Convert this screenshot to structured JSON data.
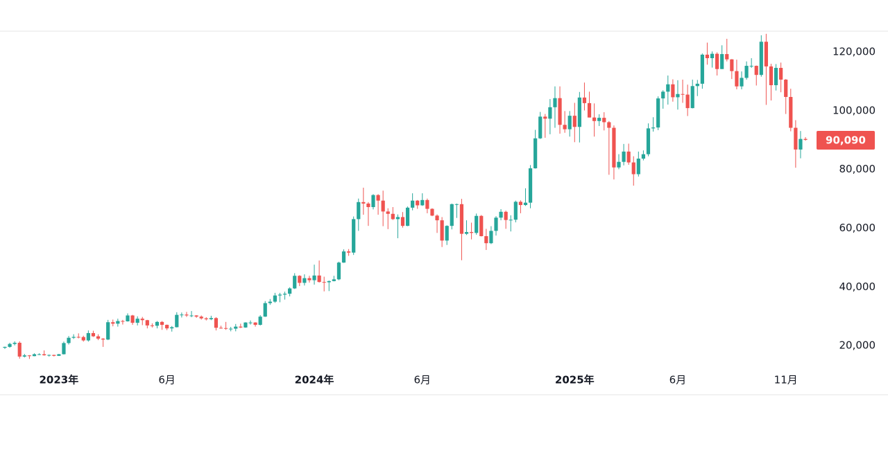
{
  "chart_data": {
    "type": "candlestick",
    "categories": [
      null,
      null,
      null,
      null,
      null,
      null,
      null,
      null,
      null,
      null,
      null,
      "2023年",
      null,
      null,
      null,
      null,
      null,
      null,
      null,
      null,
      null,
      null,
      null,
      null,
      null,
      null,
      null,
      null,
      null,
      null,
      null,
      null,
      null,
      "6月",
      null,
      null,
      null,
      null,
      null,
      null,
      null,
      null,
      null,
      null,
      null,
      null,
      null,
      null,
      null,
      null,
      null,
      null,
      null,
      null,
      null,
      null,
      null,
      null,
      null,
      null,
      null,
      null,
      null,
      "2024年",
      null,
      null,
      null,
      null,
      null,
      null,
      null,
      null,
      null,
      null,
      null,
      null,
      null,
      null,
      null,
      null,
      null,
      null,
      null,
      null,
      null,
      "6月",
      null,
      null,
      null,
      null,
      null,
      null,
      null,
      null,
      null,
      null,
      null,
      null,
      null,
      null,
      null,
      null,
      null,
      null,
      null,
      null,
      null,
      null,
      null,
      null,
      null,
      null,
      null,
      null,
      null,
      null,
      "2025年",
      null,
      null,
      null,
      null,
      null,
      null,
      null,
      null,
      null,
      null,
      null,
      null,
      null,
      null,
      null,
      null,
      null,
      null,
      null,
      null,
      "6月",
      null,
      null,
      null,
      null,
      null,
      null,
      null,
      null,
      null,
      null,
      null,
      null,
      null,
      null,
      null,
      null,
      null,
      null,
      null,
      null,
      null,
      "11月",
      null,
      null,
      null,
      null
    ],
    "open": [
      19300,
      19600,
      20600,
      21000,
      16300,
      16700,
      16450,
      17100,
      17100,
      16750,
      16850,
      16550,
      17100,
      20900,
      22700,
      23000,
      22950,
      21800,
      24300,
      23200,
      22400,
      22100,
      28000,
      27500,
      28400,
      28300,
      30300,
      27800,
      29200,
      28700,
      26900,
      26800,
      28100,
      27100,
      25900,
      26300,
      30500,
      30600,
      30300,
      30300,
      29900,
      29300,
      29000,
      29400,
      26100,
      26000,
      25800,
      25800,
      26500,
      26200,
      27900,
      27900,
      27100,
      29900,
      34500,
      35000,
      37100,
      37400,
      37700,
      39500,
      43800,
      41400,
      43000,
      42300,
      43900,
      41700,
      41600,
      42000,
      42600,
      48300,
      52100,
      51700,
      63100,
      68900,
      68400,
      67200,
      71300,
      69400,
      65700,
      64900,
      63100,
      63800,
      60800,
      67000,
      69400,
      67800,
      69600,
      66600,
      64300,
      62700,
      55800,
      60800,
      68200,
      68200,
      58100,
      58700,
      58400,
      64200,
      57300,
      54900,
      59100,
      63600,
      65600,
      62800,
      62900,
      69000,
      67900,
      68700,
      80400,
      90600,
      98000,
      97300,
      101200,
      104300,
      95200,
      93700,
      98300,
      94500,
      104500,
      102600,
      97700,
      96500,
      97600,
      96100,
      94200,
      80700,
      82600,
      86100,
      82400,
      78400,
      83700,
      85200,
      94000,
      94300,
      104200,
      106500,
      109000,
      104600,
      105700,
      105500,
      100900,
      108400,
      109200,
      119100,
      117900,
      119400,
      114200,
      119300,
      117500,
      113500,
      108300,
      111200,
      115300,
      115300,
      112200,
      123500,
      115100,
      108700,
      114600,
      110600,
      104700,
      94200,
      86800,
      90400
    ],
    "high": [
      19700,
      21000,
      21500,
      21500,
      17200,
      16800,
      17400,
      17400,
      18400,
      17000,
      16950,
      17200,
      21400,
      23300,
      23900,
      24200,
      23400,
      25200,
      25100,
      23900,
      22600,
      28800,
      28900,
      29200,
      28800,
      31000,
      30500,
      30000,
      29800,
      28800,
      27600,
      28400,
      28400,
      27200,
      26700,
      31400,
      31300,
      31500,
      31800,
      30400,
      30300,
      29700,
      30200,
      29700,
      26800,
      28100,
      26400,
      27400,
      27500,
      28000,
      28600,
      28000,
      30400,
      35200,
      35900,
      38000,
      38000,
      38400,
      39900,
      44700,
      44000,
      44300,
      43800,
      47600,
      49000,
      43500,
      42200,
      43800,
      48600,
      52800,
      52900,
      64000,
      70100,
      73800,
      68900,
      71600,
      71600,
      72800,
      66800,
      67200,
      64700,
      65500,
      67400,
      71900,
      69600,
      71900,
      70100,
      66800,
      64700,
      63800,
      61000,
      68400,
      68400,
      70000,
      62700,
      61900,
      65000,
      64500,
      59800,
      60700,
      64100,
      66500,
      66000,
      64400,
      69400,
      69500,
      73600,
      81500,
      93500,
      99600,
      98900,
      104000,
      108300,
      108300,
      99900,
      99900,
      102700,
      106400,
      109600,
      106500,
      102500,
      98800,
      99500,
      96500,
      95000,
      85200,
      88700,
      88800,
      84500,
      86100,
      86500,
      95700,
      97800,
      104900,
      107000,
      112000,
      110700,
      110400,
      110600,
      108900,
      110600,
      110500,
      119500,
      123200,
      120200,
      119900,
      122300,
      124500,
      117600,
      117400,
      113400,
      116800,
      117900,
      115400,
      125700,
      126200,
      116000,
      115900,
      116400,
      110800,
      107500,
      96800,
      93100,
      91000
    ],
    "low": [
      18900,
      19300,
      20100,
      15600,
      16000,
      15500,
      16400,
      16800,
      16600,
      16300,
      16350,
      16500,
      17000,
      20400,
      22300,
      22500,
      21400,
      21400,
      23000,
      21900,
      19600,
      21900,
      26600,
      26500,
      27200,
      28200,
      27100,
      26900,
      27000,
      25900,
      26200,
      25900,
      25400,
      25300,
      24800,
      26200,
      29600,
      29800,
      29700,
      29500,
      28900,
      28600,
      28700,
      25200,
      25800,
      25400,
      24900,
      24900,
      26000,
      26100,
      27200,
      26500,
      26900,
      29800,
      33900,
      34600,
      34800,
      35700,
      36800,
      39300,
      40300,
      40500,
      41500,
      40800,
      41500,
      38500,
      38600,
      41900,
      42300,
      48200,
      50600,
      50900,
      59100,
      64600,
      60800,
      66400,
      64600,
      60700,
      59700,
      62800,
      56600,
      60200,
      60700,
      66100,
      66600,
      67600,
      65100,
      64100,
      58400,
      53600,
      54300,
      59600,
      63500,
      49100,
      57700,
      56200,
      57800,
      57200,
      52600,
      54600,
      57500,
      62700,
      59800,
      58900,
      62000,
      65100,
      67600,
      66800,
      80300,
      90400,
      90800,
      92000,
      94200,
      92200,
      92500,
      91200,
      89300,
      89200,
      100100,
      97700,
      91200,
      94800,
      93300,
      78200,
      76600,
      80100,
      81400,
      81600,
      74500,
      77600,
      83100,
      84500,
      92900,
      93400,
      100700,
      102100,
      103100,
      100400,
      102700,
      98200,
      100800,
      105000,
      107500,
      115700,
      114700,
      112000,
      114200,
      116800,
      110800,
      107300,
      107300,
      110600,
      114600,
      108600,
      111600,
      102000,
      103500,
      106900,
      106300,
      98900,
      93000,
      80600,
      83800,
      89800
    ],
    "close": [
      19600,
      20600,
      21000,
      16300,
      16700,
      16450,
      17100,
      17100,
      16750,
      16850,
      16550,
      17100,
      20900,
      22700,
      23000,
      22950,
      21800,
      24300,
      23200,
      22400,
      22100,
      28000,
      27500,
      28400,
      28300,
      30300,
      27800,
      29200,
      28700,
      26900,
      26800,
      28100,
      27100,
      25900,
      26300,
      30500,
      30600,
      30300,
      30300,
      29900,
      29300,
      29000,
      29400,
      26100,
      26000,
      25800,
      25800,
      26500,
      26200,
      27900,
      27900,
      27100,
      29900,
      34500,
      35000,
      37100,
      37400,
      37700,
      39500,
      43800,
      41400,
      43000,
      42300,
      43900,
      41700,
      41600,
      42000,
      42600,
      48300,
      52100,
      51700,
      63100,
      68900,
      68400,
      67200,
      71300,
      69400,
      65700,
      64900,
      63100,
      63800,
      60800,
      67000,
      69400,
      67800,
      69600,
      66600,
      64300,
      62700,
      55800,
      60800,
      68200,
      68200,
      58100,
      58700,
      58400,
      64200,
      57300,
      54900,
      59100,
      63600,
      65600,
      62800,
      62900,
      69000,
      67900,
      68700,
      80400,
      90600,
      98000,
      97300,
      101200,
      104300,
      95200,
      93700,
      98300,
      94500,
      104500,
      102600,
      97700,
      96500,
      97600,
      96100,
      94200,
      80700,
      82600,
      86100,
      82400,
      78400,
      83700,
      85200,
      94000,
      94300,
      104200,
      106500,
      109000,
      104600,
      105700,
      105500,
      100900,
      108400,
      109200,
      119100,
      117900,
      119400,
      114200,
      119300,
      117500,
      113500,
      108300,
      111200,
      115300,
      115300,
      112200,
      123500,
      115100,
      108700,
      114600,
      110600,
      104700,
      94200,
      86800,
      90400,
      90090
    ],
    "up_color": "#26a69a",
    "down_color": "#ef5350",
    "price_tag": "90,090",
    "ylim": [
      3300,
      127100
    ],
    "yticks": [
      {
        "value": 20000,
        "label": "20,000"
      },
      {
        "value": 40000,
        "label": "40,000"
      },
      {
        "value": 60000,
        "label": "60,000"
      },
      {
        "value": 80000,
        "label": "80,000"
      },
      {
        "value": 100000,
        "label": "100,000"
      },
      {
        "value": 120000,
        "label": "120,000"
      }
    ],
    "grid": false
  }
}
